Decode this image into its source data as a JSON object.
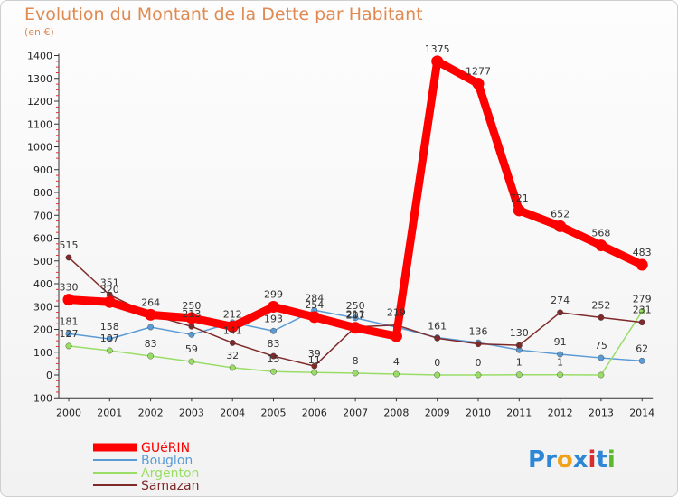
{
  "title": "Evolution du Montant de la Dette par Habitant",
  "subtitle": "(en €)",
  "logo_text": "Proxiti",
  "chart_data": {
    "type": "line",
    "x": [
      "2000",
      "2001",
      "2002",
      "2003",
      "2004",
      "2005",
      "2006",
      "2007",
      "2008",
      "2009",
      "2010",
      "2011",
      "2012",
      "2013",
      "2014"
    ],
    "ylim": [
      -100,
      1400
    ],
    "yticks": [
      -100,
      0,
      100,
      200,
      300,
      400,
      500,
      600,
      700,
      800,
      900,
      1000,
      1100,
      1200,
      1300,
      1400
    ],
    "grid": false,
    "legend_position": "bottom-left",
    "series": [
      {
        "name": "GUéRIN",
        "color": "#ff0000",
        "width": 9,
        "values": [
          330,
          320,
          264,
          250,
          212,
          299,
          254,
          207,
          170,
          1375,
          1277,
          721,
          652,
          568,
          483
        ],
        "labels": [
          "330",
          "320",
          "264",
          "250",
          "212",
          "299",
          "254",
          "207",
          "",
          "1375",
          "1277",
          "721",
          "652",
          "568",
          "483"
        ]
      },
      {
        "name": "Bouglon",
        "color": "#5b9bd5",
        "width": 1.5,
        "values": [
          181,
          158,
          210,
          177,
          230,
          193,
          284,
          250,
          210,
          164,
          142,
          110,
          91,
          75,
          62
        ],
        "labels": [
          "181",
          "158",
          "",
          "",
          "",
          "193",
          "284",
          "250",
          "",
          "",
          "",
          "",
          "91",
          "75",
          "62"
        ]
      },
      {
        "name": "Argenton",
        "color": "#99dd66",
        "width": 1.5,
        "values": [
          127,
          107,
          83,
          59,
          32,
          15,
          11,
          8,
          4,
          0,
          0,
          1,
          1,
          0,
          279
        ],
        "labels": [
          "127",
          "107",
          "83",
          "59",
          "32",
          "15",
          "11",
          "8",
          "4",
          "0",
          "0",
          "1",
          "1",
          "",
          "279"
        ]
      },
      {
        "name": "Samazan",
        "color": "#7f2a2a",
        "width": 1.5,
        "values": [
          515,
          351,
          264,
          213,
          141,
          83,
          39,
          211,
          219,
          161,
          136,
          130,
          274,
          252,
          231
        ],
        "labels": [
          "515",
          "351",
          "",
          "213",
          "141",
          "83",
          "39",
          "211",
          "219",
          "161",
          "136",
          "130",
          "274",
          "252",
          "231"
        ]
      }
    ]
  }
}
